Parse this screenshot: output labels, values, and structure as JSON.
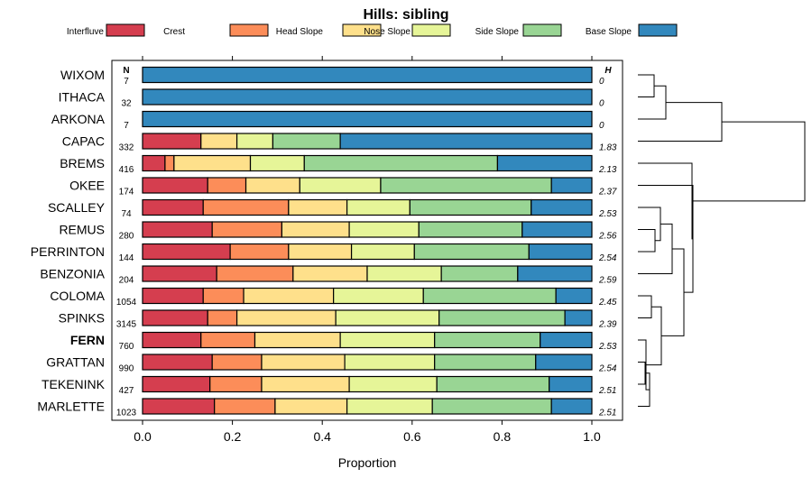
{
  "chart_data": {
    "type": "bar",
    "stacked": true,
    "orientation": "horizontal",
    "title": "Hills: sibling",
    "xlabel": "Proportion",
    "ylabel": "",
    "xlim": [
      0,
      1
    ],
    "xticks": [
      "0.0",
      "0.2",
      "0.4",
      "0.6",
      "0.8",
      "1.0"
    ],
    "n_header": "N",
    "h_header": "H",
    "highlight": "FERN",
    "legend": [
      {
        "name": "Interfluve",
        "color": "#d53e4f"
      },
      {
        "name": "Crest",
        "color": "#fc8d59"
      },
      {
        "name": "Head Slope",
        "color": "#fee08b"
      },
      {
        "name": "Nose Slope",
        "color": "#e6f598"
      },
      {
        "name": "Side Slope",
        "color": "#99d594"
      },
      {
        "name": "Base Slope",
        "color": "#3288bd"
      }
    ],
    "series_names": [
      "Interfluve",
      "Crest",
      "Head Slope",
      "Nose Slope",
      "Side Slope",
      "Base Slope"
    ],
    "categories": [
      "WIXOM",
      "ITHACA",
      "ARKONA",
      "CAPAC",
      "BREMS",
      "OKEE",
      "SCALLEY",
      "REMUS",
      "PERRINTON",
      "BENZONIA",
      "COLOMA",
      "SPINKS",
      "FERN",
      "GRATTAN",
      "TEKENINK",
      "MARLETTE"
    ],
    "n": [
      "7",
      "32",
      "7",
      "332",
      "416",
      "174",
      "74",
      "280",
      "144",
      "204",
      "1054",
      "3145",
      "760",
      "990",
      "427",
      "1023"
    ],
    "h": [
      "0",
      "0",
      "0",
      "1.83",
      "2.13",
      "2.37",
      "2.53",
      "2.56",
      "2.54",
      "2.59",
      "2.45",
      "2.39",
      "2.53",
      "2.54",
      "2.51",
      "2.51"
    ],
    "values": [
      [
        0,
        0,
        0,
        0,
        0,
        1
      ],
      [
        0,
        0,
        0,
        0,
        0,
        1
      ],
      [
        0,
        0,
        0,
        0,
        0,
        1
      ],
      [
        0.13,
        0,
        0.08,
        0.08,
        0.15,
        0.56
      ],
      [
        0.05,
        0.02,
        0.17,
        0.12,
        0.43,
        0.21
      ],
      [
        0.145,
        0.085,
        0.12,
        0.18,
        0.38,
        0.09
      ],
      [
        0.135,
        0.19,
        0.13,
        0.14,
        0.27,
        0.135
      ],
      [
        0.155,
        0.155,
        0.15,
        0.155,
        0.23,
        0.155
      ],
      [
        0.195,
        0.13,
        0.14,
        0.14,
        0.255,
        0.14
      ],
      [
        0.165,
        0.17,
        0.165,
        0.165,
        0.17,
        0.165
      ],
      [
        0.135,
        0.09,
        0.2,
        0.2,
        0.295,
        0.08
      ],
      [
        0.145,
        0.065,
        0.22,
        0.23,
        0.28,
        0.06
      ],
      [
        0.13,
        0.12,
        0.19,
        0.21,
        0.235,
        0.115
      ],
      [
        0.155,
        0.11,
        0.185,
        0.2,
        0.225,
        0.125
      ],
      [
        0.15,
        0.115,
        0.195,
        0.195,
        0.25,
        0.095
      ],
      [
        0.16,
        0.135,
        0.16,
        0.19,
        0.265,
        0.09
      ]
    ]
  }
}
